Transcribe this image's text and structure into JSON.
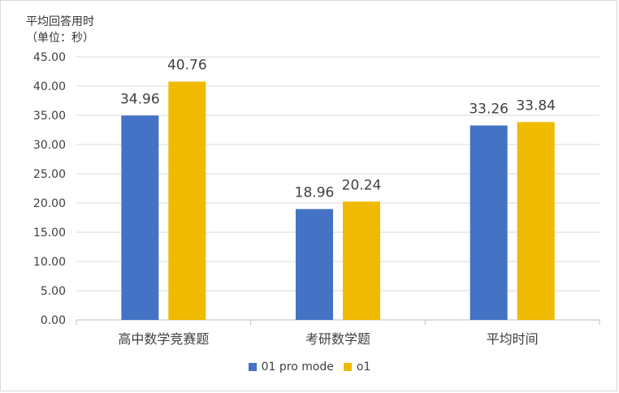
{
  "chart_data": {
    "type": "bar",
    "ylabel_line1": "平均回答用时",
    "ylabel_line2": "（单位：秒）",
    "categories": [
      "高中数学竞赛题",
      "考研数学题",
      "平均时间"
    ],
    "series": [
      {
        "name": "01 pro mode",
        "color": "#4472c4",
        "values": [
          34.96,
          18.96,
          33.26
        ]
      },
      {
        "name": "o1",
        "color": "#f0ba00",
        "values": [
          40.76,
          20.24,
          33.84
        ]
      }
    ],
    "ylim": [
      0,
      45
    ],
    "yticks": [
      "0.00",
      "5.00",
      "10.00",
      "15.00",
      "20.00",
      "25.00",
      "30.00",
      "35.00",
      "40.00",
      "45.00"
    ],
    "data_labels": [
      [
        "34.96",
        "18.96",
        "33.26"
      ],
      [
        "40.76",
        "20.24",
        "33.84"
      ]
    ],
    "grid": true,
    "legend_position": "bottom"
  }
}
